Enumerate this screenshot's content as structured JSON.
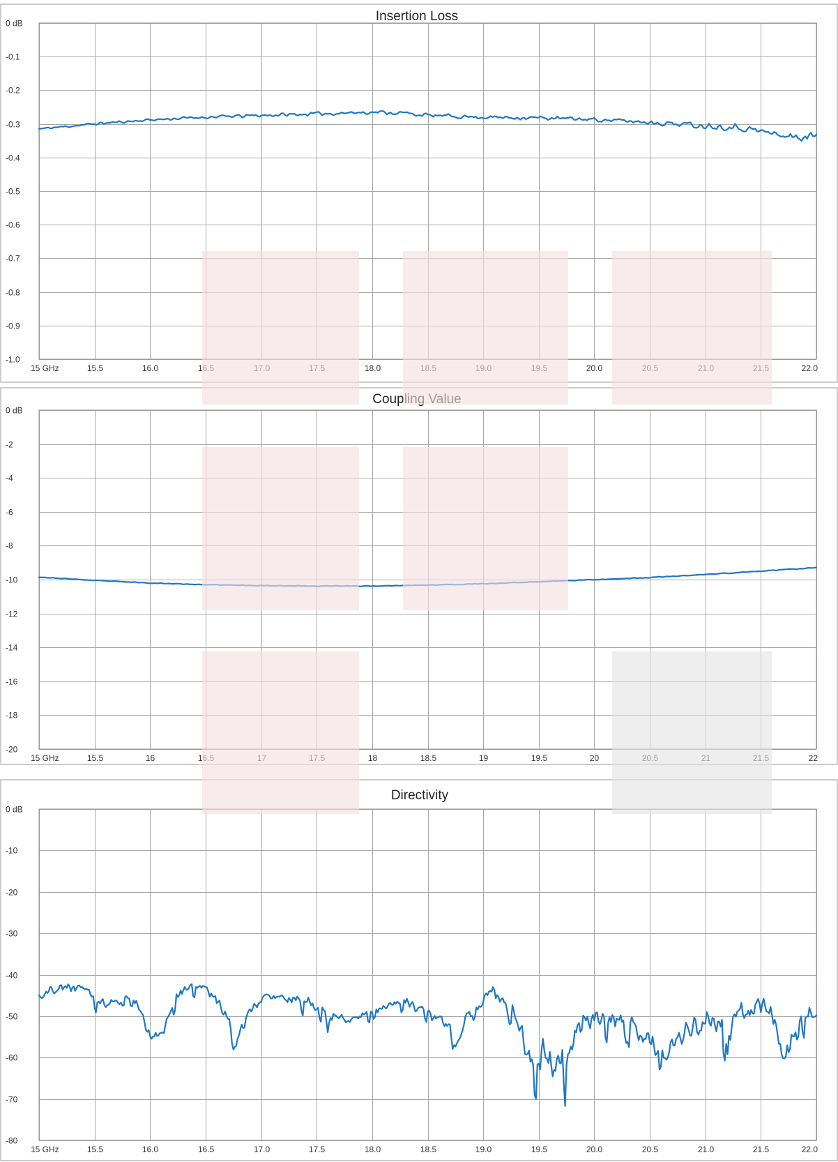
{
  "chart_data": [
    {
      "type": "line",
      "title": "Insertion Loss",
      "ylim": [
        -1.0,
        0
      ],
      "xlim": [
        15,
        22
      ],
      "grid": true,
      "xticks": [
        "15 GHz",
        "15.5",
        "16.0",
        "16.5",
        "17.0",
        "17.5",
        "18.0",
        "18.5",
        "19.0",
        "19.5",
        "20.0",
        "20.5",
        "21.0",
        "21.5",
        "22.0"
      ],
      "yticks": [
        "0 dB",
        "-0.1",
        "-0.2",
        "-0.3",
        "-0.4",
        "-0.5",
        "-0.6",
        "-0.7",
        "-0.8",
        "-0.9",
        "-1.0"
      ],
      "series": [
        {
          "color": "#1f77c4",
          "anchors": [
            [
              15.0,
              -0.315
            ],
            [
              15.5,
              -0.3
            ],
            [
              16.0,
              -0.288
            ],
            [
              16.5,
              -0.28
            ],
            [
              17.0,
              -0.275
            ],
            [
              17.5,
              -0.27
            ],
            [
              18.0,
              -0.265
            ],
            [
              18.3,
              -0.268
            ],
            [
              18.5,
              -0.275
            ],
            [
              19.0,
              -0.28
            ],
            [
              19.5,
              -0.282
            ],
            [
              20.0,
              -0.287
            ],
            [
              20.5,
              -0.295
            ],
            [
              21.0,
              -0.305
            ],
            [
              21.3,
              -0.31
            ],
            [
              21.5,
              -0.322
            ],
            [
              21.8,
              -0.34
            ],
            [
              22.0,
              -0.337
            ]
          ],
          "noise": [
            [
              15.0,
              0.004
            ],
            [
              18.0,
              0.007
            ],
            [
              20.0,
              0.007
            ],
            [
              21.2,
              0.012
            ],
            [
              22.0,
              0.016
            ]
          ],
          "points": 420,
          "seed": 11
        }
      ]
    },
    {
      "type": "line",
      "title": "Coupling Value",
      "ylim": [
        -20,
        0
      ],
      "xlim": [
        15,
        22
      ],
      "grid": true,
      "xticks": [
        "15 GHz",
        "15.5",
        "16",
        "16.5",
        "17",
        "17.5",
        "18",
        "18.5",
        "19",
        "19.5",
        "20",
        "20.5",
        "21",
        "21.5",
        "22"
      ],
      "yticks": [
        "0 dB",
        "-2",
        "-4",
        "-6",
        "-8",
        "-10",
        "-12",
        "-14",
        "-16",
        "-18",
        "-20"
      ],
      "series": [
        {
          "color": "#1f77c4",
          "anchors": [
            [
              15.0,
              -9.85
            ],
            [
              15.5,
              -10.05
            ],
            [
              16.0,
              -10.2
            ],
            [
              16.5,
              -10.3
            ],
            [
              17.0,
              -10.35
            ],
            [
              17.5,
              -10.38
            ],
            [
              18.0,
              -10.38
            ],
            [
              18.5,
              -10.32
            ],
            [
              19.0,
              -10.25
            ],
            [
              19.5,
              -10.12
            ],
            [
              20.0,
              -10.0
            ],
            [
              20.5,
              -9.88
            ],
            [
              21.0,
              -9.7
            ],
            [
              21.5,
              -9.5
            ],
            [
              22.0,
              -9.3
            ]
          ],
          "noise": [
            [
              15.0,
              0.02
            ],
            [
              22.0,
              0.03
            ]
          ],
          "points": 420,
          "seed": 23
        }
      ]
    },
    {
      "type": "line",
      "title": "Directivity",
      "ylim": [
        -80,
        0
      ],
      "xlim": [
        15,
        22
      ],
      "grid": true,
      "xticks": [
        "15 GHz",
        "15.5",
        "16.0",
        "16.5",
        "17.0",
        "17.5",
        "18.0",
        "18.5",
        "19.0",
        "19.5",
        "20.0",
        "20.5",
        "21.0",
        "21.5",
        "22.0"
      ],
      "yticks": [
        "0 dB",
        "-10",
        "-20",
        "-30",
        "-40",
        "-50",
        "-60",
        "-70",
        "-80"
      ],
      "series": [
        {
          "color": "#1f77c4",
          "anchors": [
            [
              15.0,
              -45
            ],
            [
              15.2,
              -43
            ],
            [
              15.4,
              -43
            ],
            [
              15.6,
              -47
            ],
            [
              15.8,
              -45
            ],
            [
              15.9,
              -48
            ],
            [
              16.0,
              -55
            ],
            [
              16.1,
              -55
            ],
            [
              16.2,
              -48
            ],
            [
              16.3,
              -43
            ],
            [
              16.45,
              -42
            ],
            [
              16.6,
              -46
            ],
            [
              16.7,
              -50
            ],
            [
              16.77,
              -57
            ],
            [
              16.85,
              -50
            ],
            [
              17.0,
              -46
            ],
            [
              17.2,
              -46
            ],
            [
              17.4,
              -46
            ],
            [
              17.6,
              -50
            ],
            [
              17.8,
              -51
            ],
            [
              17.95,
              -50
            ],
            [
              18.1,
              -48
            ],
            [
              18.3,
              -46
            ],
            [
              18.5,
              -49
            ],
            [
              18.7,
              -53
            ],
            [
              18.75,
              -57
            ],
            [
              18.85,
              -50
            ],
            [
              19.0,
              -46
            ],
            [
              19.1,
              -44
            ],
            [
              19.25,
              -48
            ],
            [
              19.4,
              -59
            ],
            [
              19.6,
              -61
            ],
            [
              19.8,
              -58
            ],
            [
              19.95,
              -50
            ],
            [
              20.1,
              -50
            ],
            [
              20.3,
              -51
            ],
            [
              20.5,
              -57
            ],
            [
              20.7,
              -58
            ],
            [
              20.9,
              -52
            ],
            [
              21.1,
              -52
            ],
            [
              21.3,
              -50
            ],
            [
              21.5,
              -47
            ],
            [
              21.6,
              -48
            ],
            [
              21.7,
              -61
            ],
            [
              21.8,
              -56
            ],
            [
              21.9,
              -50
            ],
            [
              22.0,
              -50
            ]
          ],
          "noise": [
            [
              15.0,
              1.2
            ],
            [
              16.0,
              1.6
            ],
            [
              17.0,
              1.5
            ],
            [
              18.0,
              1.5
            ],
            [
              19.3,
              2.0
            ],
            [
              19.4,
              5.0
            ],
            [
              19.8,
              5.5
            ],
            [
              20.0,
              2.5
            ],
            [
              20.5,
              3.0
            ],
            [
              21.0,
              4.0
            ],
            [
              21.5,
              3.0
            ],
            [
              21.8,
              3.5
            ],
            [
              22.0,
              1.5
            ]
          ],
          "points": 560,
          "seed": 37
        }
      ]
    }
  ]
}
